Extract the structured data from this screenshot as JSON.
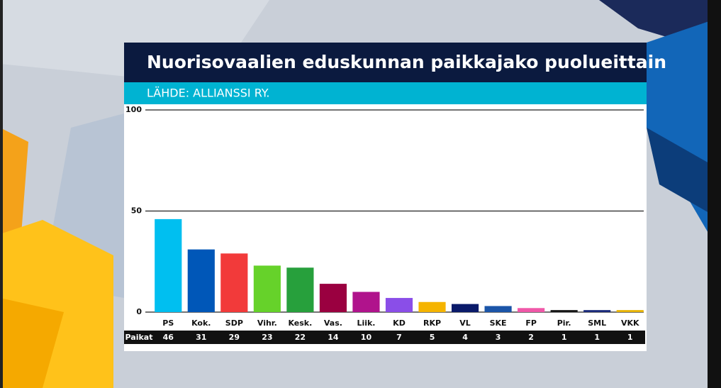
{
  "chart_data": {
    "type": "bar",
    "title": "Nuorisovaalien eduskunnan paikkajako puolueittain",
    "subtitle": "LÄHDE:  ALLIANSSI RY.",
    "categories": [
      "PS",
      "Kok.",
      "SDP",
      "Vihr.",
      "Kesk.",
      "Vas.",
      "Liik.",
      "KD",
      "RKP",
      "VL",
      "SKE",
      "FP",
      "Pir.",
      "SML",
      "VKK"
    ],
    "values": [
      46,
      31,
      29,
      23,
      22,
      14,
      10,
      7,
      5,
      4,
      3,
      2,
      1,
      1,
      1
    ],
    "colors": [
      "#00bff0",
      "#0057b8",
      "#f23a3a",
      "#66d22a",
      "#27a03c",
      "#9a0040",
      "#b0138c",
      "#8a4ee8",
      "#f5b400",
      "#0a1a6a",
      "#1b55a8",
      "#f058a8",
      "#151515",
      "#1a2a7a",
      "#e8b400"
    ],
    "row_label": "Paikat",
    "ylim": [
      0,
      100
    ],
    "yticks": [
      0,
      50,
      100
    ],
    "grid": true
  }
}
